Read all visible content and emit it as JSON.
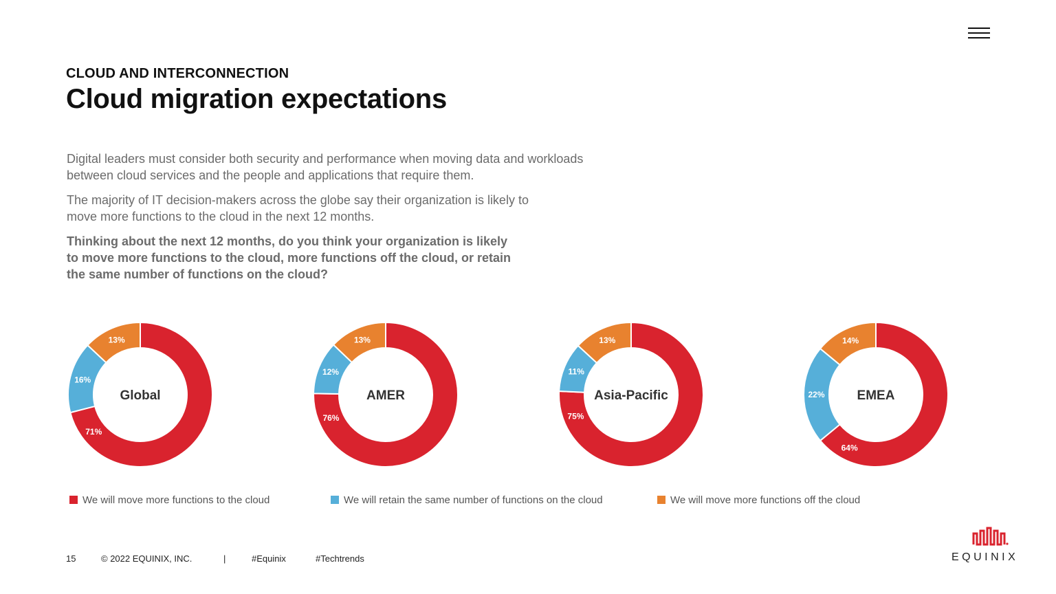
{
  "header": {
    "kicker": "CLOUD AND INTERCONNECTION",
    "title": "Cloud migration expectations"
  },
  "body": {
    "paragraph1": "Digital leaders must consider both security and performance when moving data and workloads between cloud services and the people and applications that require them.",
    "paragraph2": "The majority of IT decision-makers across the globe say their organization is likely to move more functions to the cloud in the next 12 months.",
    "question": "Thinking about the next 12 months, do you think your organization is likely to move more functions to the cloud, more functions off the cloud, or retain the same number of functions on the cloud?"
  },
  "chart_data": {
    "type": "pie",
    "variant": "donut",
    "series_labels": [
      "We will move more functions to the cloud",
      "We will retain the same number of functions on the cloud",
      "We will move more functions off the cloud"
    ],
    "colors": [
      "#d9232e",
      "#56afd9",
      "#e8822f"
    ],
    "legend_position": "bottom",
    "charts": [
      {
        "name": "Global",
        "values": [
          71,
          16,
          13
        ]
      },
      {
        "name": "AMER",
        "values": [
          76,
          12,
          13
        ]
      },
      {
        "name": "Asia-Pacific",
        "values": [
          75,
          11,
          13
        ]
      },
      {
        "name": "EMEA",
        "values": [
          64,
          22,
          14
        ]
      }
    ]
  },
  "footer": {
    "page_number": "15",
    "copyright": "© 2022 EQUINIX, INC.",
    "separator": "|",
    "hashtag1": "#Equinix",
    "hashtag2": "#Techtrends"
  },
  "logo": {
    "wordmark": "EQUINIX"
  },
  "icons": {
    "menu": "hamburger-menu-icon",
    "logo": "equinix-logo-icon"
  }
}
